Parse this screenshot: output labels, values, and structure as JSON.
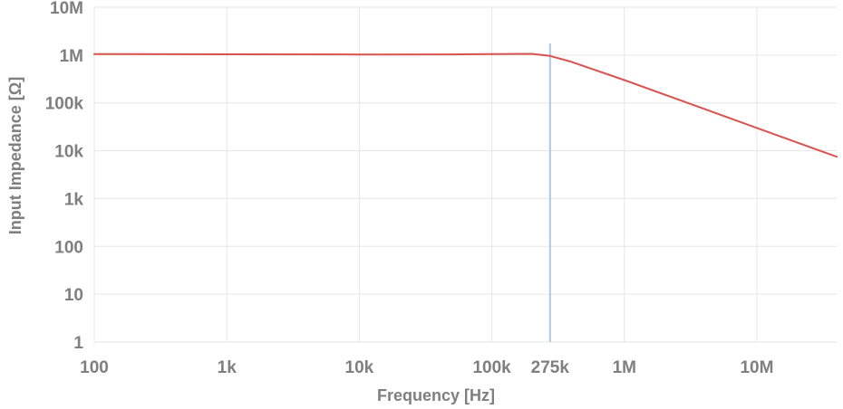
{
  "chart_data": {
    "type": "line",
    "title": "",
    "xlabel": "Frequency [Hz]",
    "ylabel": "Input Impedance [Ω]",
    "xscale": "log",
    "yscale": "log",
    "xlim": [
      100,
      40000000
    ],
    "ylim": [
      1,
      10000000
    ],
    "grid": true,
    "legend": "none",
    "x_ticks": [
      {
        "value": 100,
        "label": "100"
      },
      {
        "value": 1000,
        "label": "1k"
      },
      {
        "value": 10000,
        "label": "10k"
      },
      {
        "value": 100000,
        "label": "100k"
      },
      {
        "value": 275000,
        "label": "275k"
      },
      {
        "value": 1000000,
        "label": "1M"
      },
      {
        "value": 10000000,
        "label": "10M"
      }
    ],
    "y_ticks": [
      {
        "value": 1,
        "label": "1"
      },
      {
        "value": 10,
        "label": "10"
      },
      {
        "value": 100,
        "label": "100"
      },
      {
        "value": 1000,
        "label": "1k"
      },
      {
        "value": 10000,
        "label": "10k"
      },
      {
        "value": 100000,
        "label": "100k"
      },
      {
        "value": 1000000,
        "label": "1M"
      },
      {
        "value": 10000000,
        "label": "10M"
      }
    ],
    "marker_line": {
      "x": 275000,
      "color": "#a9c9e6"
    },
    "series": [
      {
        "color": "#d9534f",
        "x": [
          100,
          1000,
          10000,
          50000,
          100000,
          200000,
          275000,
          400000,
          1000000,
          3000000,
          10000000,
          40000000
        ],
        "y": [
          1050000,
          1040000,
          1030000,
          1035000,
          1045000,
          1060000,
          960000,
          720000,
          300000,
          100000,
          30000,
          7500
        ]
      }
    ]
  },
  "colors": {
    "grid": "#e6e6e6",
    "tick_text": "#7f7f7f",
    "series": "#d9534f",
    "marker": "#a9c9e6"
  }
}
